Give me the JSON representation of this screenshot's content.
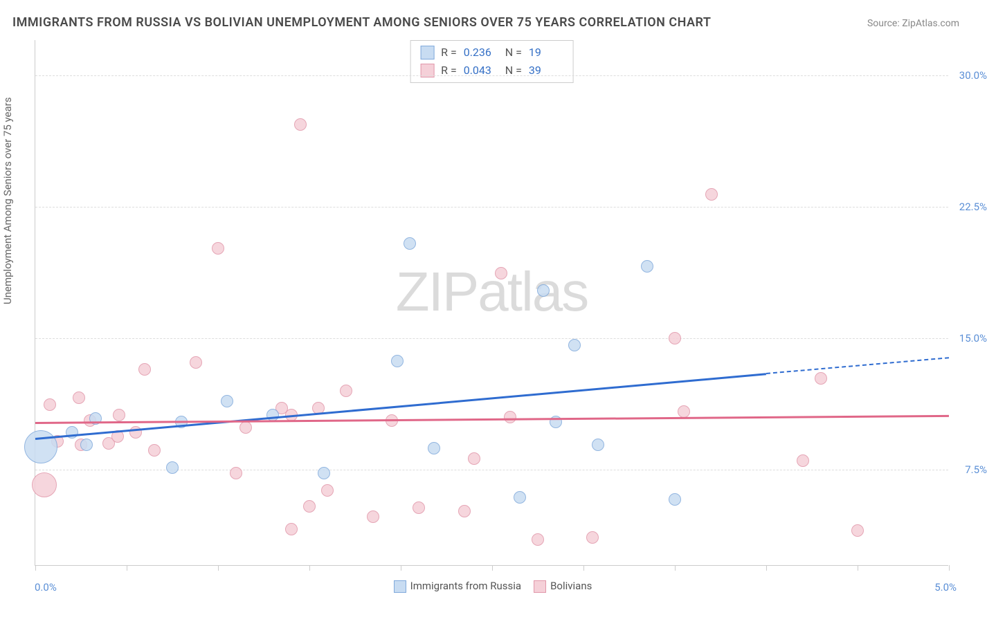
{
  "title": "IMMIGRANTS FROM RUSSIA VS BOLIVIAN UNEMPLOYMENT AMONG SENIORS OVER 75 YEARS CORRELATION CHART",
  "source": "Source: ZipAtlas.com",
  "watermark": "ZIPatlas",
  "y_axis": {
    "label": "Unemployment Among Seniors over 75 years",
    "label_color": "#666666"
  },
  "x_axis": {
    "left_label": "0.0%",
    "right_label": "5.0%",
    "label_color": "#5b8fd6",
    "min": 0.0,
    "max": 5.0,
    "tick_step": 0.5
  },
  "y_scale": {
    "min": 2.0,
    "max": 32.0,
    "ticks": [
      7.5,
      15.0,
      22.5,
      30.0
    ],
    "tick_labels": [
      "7.5%",
      "15.0%",
      "22.5%",
      "30.0%"
    ],
    "tick_color": "#5b8fd6"
  },
  "grid_color": "#dddddd",
  "background_color": "#ffffff",
  "series": {
    "russia": {
      "label": "Immigrants from Russia",
      "fill": "#c8dcf2",
      "stroke": "#7fa9db",
      "line_color": "#2f6cd0",
      "R": "0.236",
      "N": "19",
      "trend": {
        "x1": 0.0,
        "y1": 9.3,
        "x2": 4.0,
        "y2": 13.0,
        "dash_x2": 5.0,
        "dash_y2": 13.9
      },
      "points": [
        {
          "x": 0.03,
          "y": 8.8,
          "r": 24
        },
        {
          "x": 0.2,
          "y": 9.6,
          "r": 9
        },
        {
          "x": 0.33,
          "y": 10.4,
          "r": 9
        },
        {
          "x": 0.28,
          "y": 8.9,
          "r": 9
        },
        {
          "x": 0.75,
          "y": 7.6,
          "r": 9
        },
        {
          "x": 0.8,
          "y": 10.2,
          "r": 9
        },
        {
          "x": 1.05,
          "y": 11.4,
          "r": 9
        },
        {
          "x": 1.3,
          "y": 10.6,
          "r": 9
        },
        {
          "x": 1.58,
          "y": 7.3,
          "r": 9
        },
        {
          "x": 1.98,
          "y": 13.7,
          "r": 9
        },
        {
          "x": 2.05,
          "y": 20.4,
          "r": 9
        },
        {
          "x": 2.18,
          "y": 8.7,
          "r": 9
        },
        {
          "x": 2.65,
          "y": 5.9,
          "r": 9
        },
        {
          "x": 2.78,
          "y": 17.7,
          "r": 9
        },
        {
          "x": 2.95,
          "y": 14.6,
          "r": 9
        },
        {
          "x": 3.08,
          "y": 8.9,
          "r": 9
        },
        {
          "x": 3.35,
          "y": 19.1,
          "r": 9
        },
        {
          "x": 3.5,
          "y": 5.8,
          "r": 9
        },
        {
          "x": 2.85,
          "y": 10.2,
          "r": 9
        }
      ]
    },
    "bolivia": {
      "label": "Bolivians",
      "fill": "#f5d0d8",
      "stroke": "#e196a9",
      "line_color": "#e06788",
      "R": "0.043",
      "N": "39",
      "trend": {
        "x1": 0.0,
        "y1": 10.2,
        "x2": 5.0,
        "y2": 10.6
      },
      "points": [
        {
          "x": 0.05,
          "y": 6.6,
          "r": 18
        },
        {
          "x": 0.08,
          "y": 11.2,
          "r": 9
        },
        {
          "x": 0.12,
          "y": 9.1,
          "r": 9
        },
        {
          "x": 0.25,
          "y": 8.9,
          "r": 9
        },
        {
          "x": 0.24,
          "y": 11.6,
          "r": 9
        },
        {
          "x": 0.3,
          "y": 10.3,
          "r": 9
        },
        {
          "x": 0.4,
          "y": 9.0,
          "r": 9
        },
        {
          "x": 0.45,
          "y": 9.4,
          "r": 9
        },
        {
          "x": 0.46,
          "y": 10.6,
          "r": 9
        },
        {
          "x": 0.6,
          "y": 13.2,
          "r": 9
        },
        {
          "x": 0.65,
          "y": 8.6,
          "r": 9
        },
        {
          "x": 0.88,
          "y": 13.6,
          "r": 9
        },
        {
          "x": 1.0,
          "y": 20.1,
          "r": 9
        },
        {
          "x": 1.1,
          "y": 7.3,
          "r": 9
        },
        {
          "x": 1.15,
          "y": 9.9,
          "r": 9
        },
        {
          "x": 1.35,
          "y": 11.0,
          "r": 9
        },
        {
          "x": 1.4,
          "y": 10.6,
          "r": 9
        },
        {
          "x": 1.4,
          "y": 4.1,
          "r": 9
        },
        {
          "x": 1.45,
          "y": 27.2,
          "r": 9
        },
        {
          "x": 1.55,
          "y": 11.0,
          "r": 9
        },
        {
          "x": 1.6,
          "y": 6.3,
          "r": 9
        },
        {
          "x": 1.7,
          "y": 12.0,
          "r": 9
        },
        {
          "x": 1.85,
          "y": 4.8,
          "r": 9
        },
        {
          "x": 2.1,
          "y": 5.3,
          "r": 9
        },
        {
          "x": 2.35,
          "y": 5.1,
          "r": 9
        },
        {
          "x": 2.4,
          "y": 8.1,
          "r": 9
        },
        {
          "x": 2.55,
          "y": 18.7,
          "r": 9
        },
        {
          "x": 2.75,
          "y": 3.5,
          "r": 9
        },
        {
          "x": 3.05,
          "y": 3.6,
          "r": 9
        },
        {
          "x": 3.5,
          "y": 15.0,
          "r": 9
        },
        {
          "x": 3.55,
          "y": 10.8,
          "r": 9
        },
        {
          "x": 3.7,
          "y": 23.2,
          "r": 9
        },
        {
          "x": 4.2,
          "y": 8.0,
          "r": 9
        },
        {
          "x": 4.3,
          "y": 12.7,
          "r": 9
        },
        {
          "x": 4.5,
          "y": 4.0,
          "r": 9
        },
        {
          "x": 1.5,
          "y": 5.4,
          "r": 9
        },
        {
          "x": 0.55,
          "y": 9.6,
          "r": 9
        },
        {
          "x": 2.6,
          "y": 10.5,
          "r": 9
        },
        {
          "x": 1.95,
          "y": 10.3,
          "r": 9
        }
      ]
    }
  },
  "top_legend": {
    "rows": [
      {
        "swatch_fill": "#c8dcf2",
        "swatch_stroke": "#7fa9db",
        "R": "0.236",
        "N": "19"
      },
      {
        "swatch_fill": "#f5d0d8",
        "swatch_stroke": "#e196a9",
        "R": "0.043",
        "N": "39"
      }
    ]
  }
}
